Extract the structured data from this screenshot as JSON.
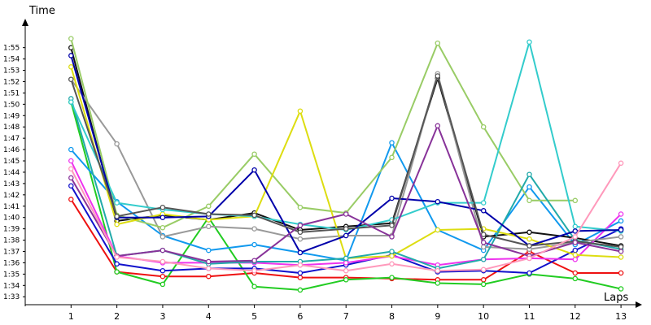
{
  "chart_data": {
    "type": "line",
    "ylabel": "Time",
    "xlabel": "Laps",
    "x": [
      1,
      2,
      3,
      4,
      5,
      6,
      7,
      8,
      9,
      10,
      11,
      12,
      13
    ],
    "xlim": [
      0,
      13.3
    ],
    "ylim": [
      92.3,
      117.2
    ],
    "y_ticks": [
      {
        "label": "1:33",
        "value": 93
      },
      {
        "label": "1:34",
        "value": 94
      },
      {
        "label": "1:35",
        "value": 95
      },
      {
        "label": "1:36",
        "value": 96
      },
      {
        "label": "1:37",
        "value": 97
      },
      {
        "label": "1:38",
        "value": 98
      },
      {
        "label": "1:39",
        "value": 99
      },
      {
        "label": "1:40",
        "value": 100
      },
      {
        "label": "1:41",
        "value": 101
      },
      {
        "label": "1:42",
        "value": 102
      },
      {
        "label": "1:43",
        "value": 103
      },
      {
        "label": "1:44",
        "value": 104
      },
      {
        "label": "1:45",
        "value": 105
      },
      {
        "label": "1:46",
        "value": 106
      },
      {
        "label": "1:47",
        "value": 107
      },
      {
        "label": "1:48",
        "value": 108
      },
      {
        "label": "1:49",
        "value": 109
      },
      {
        "label": "1:50",
        "value": 110
      },
      {
        "label": "1:51",
        "value": 111
      },
      {
        "label": "1:52",
        "value": 112
      },
      {
        "label": "1:53",
        "value": 113
      },
      {
        "label": "1:54",
        "value": 114
      },
      {
        "label": "1:55",
        "value": 115
      }
    ],
    "grid": false,
    "legend": "none",
    "series": [
      {
        "color": "#ee1111",
        "values": [
          101.6,
          95.2,
          94.8,
          94.8,
          95.1,
          94.7,
          94.7,
          94.6,
          94.5,
          94.5,
          97.0,
          95.1,
          95.1
        ]
      },
      {
        "color": "#22cc22",
        "values": [
          110.2,
          95.2,
          94.1,
          100.0,
          93.9,
          93.6,
          94.5,
          94.7,
          94.2,
          94.1,
          95.0,
          94.6,
          93.7
        ]
      },
      {
        "color": "#1111cc",
        "values": [
          102.8,
          95.9,
          95.3,
          95.5,
          95.5,
          95.1,
          95.8,
          96.7,
          95.2,
          95.3,
          95.1,
          97.1,
          99.0
        ]
      },
      {
        "color": "#1199ee",
        "values": [
          106.0,
          101.4,
          98.4,
          97.1,
          97.6,
          96.9,
          96.2,
          106.6,
          98.9,
          97.1,
          102.7,
          97.6,
          99.7
        ]
      },
      {
        "color": "#111111",
        "values": [
          115.0,
          99.7,
          100.2,
          99.8,
          100.4,
          98.9,
          99.2,
          99.5,
          112.3,
          98.3,
          98.7,
          98.2,
          97.5
        ]
      },
      {
        "color": "#ee33ee",
        "values": [
          105.0,
          96.6,
          96.0,
          96.0,
          96.0,
          95.8,
          96.0,
          96.6,
          95.8,
          96.3,
          96.4,
          96.3,
          100.3
        ]
      },
      {
        "color": "#999999",
        "values": [
          112.2,
          106.5,
          98.3,
          99.2,
          99.0,
          98.1,
          98.4,
          98.4,
          112.7,
          97.4,
          97.2,
          97.8,
          98.3
        ]
      },
      {
        "color": "#99cc66",
        "values": [
          115.8,
          100.2,
          99.1,
          101.0,
          105.6,
          100.9,
          100.4,
          105.3,
          115.4,
          108.0,
          101.5,
          101.5,
          null
        ]
      },
      {
        "color": "#dddd11",
        "values": [
          113.3,
          99.4,
          100.3,
          99.8,
          100.1,
          109.4,
          96.4,
          96.6,
          98.9,
          99.0,
          98.1,
          96.7,
          96.5
        ]
      },
      {
        "color": "#22aaaa",
        "values": [
          110.5,
          96.6,
          97.1,
          95.9,
          96.1,
          96.1,
          96.4,
          97.0,
          95.5,
          96.3,
          103.8,
          98.0,
          97.2
        ]
      },
      {
        "color": "#33cccc",
        "values": [
          110.2,
          101.3,
          100.7,
          100.3,
          100.1,
          99.4,
          98.9,
          99.8,
          101.3,
          101.3,
          115.5,
          99.2,
          98.8
        ]
      },
      {
        "color": "#0000aa",
        "values": [
          114.3,
          100.0,
          100.0,
          100.1,
          104.2,
          96.9,
          98.4,
          101.7,
          101.4,
          100.6,
          97.5,
          98.8,
          98.9
        ]
      },
      {
        "color": "#555555",
        "values": [
          112.2,
          100.1,
          100.9,
          100.3,
          100.2,
          98.7,
          99.0,
          99.3,
          112.5,
          98.5,
          97.5,
          97.9,
          97.4
        ]
      },
      {
        "color": "#883399",
        "values": [
          103.5,
          96.6,
          97.1,
          96.1,
          96.2,
          99.3,
          100.3,
          98.3,
          108.1,
          97.8,
          96.6,
          97.8,
          97.0
        ]
      },
      {
        "color": "#ff99bb",
        "values": [
          104.3,
          96.5,
          96.1,
          95.5,
          95.3,
          95.8,
          95.3,
          95.9,
          95.3,
          95.4,
          96.4,
          98.3,
          104.8
        ]
      }
    ]
  }
}
